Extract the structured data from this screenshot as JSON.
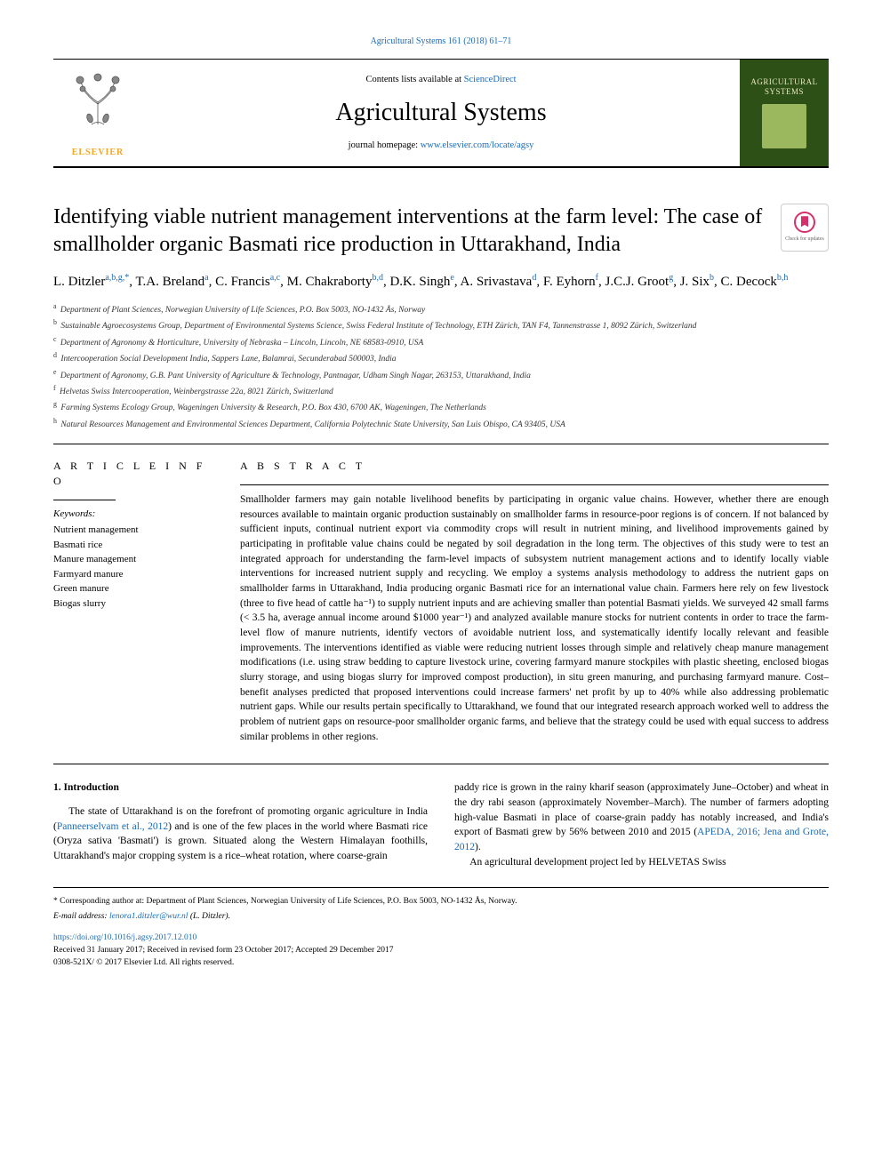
{
  "top_citation": "Agricultural Systems 161 (2018) 61–71",
  "masthead": {
    "contents_prefix": "Contents lists available at ",
    "contents_link": "ScienceDirect",
    "journal_name": "Agricultural Systems",
    "homepage_prefix": "journal homepage: ",
    "homepage_link": "www.elsevier.com/locate/agsy",
    "publisher_logo_text": "ELSEVIER",
    "cover_title": "AGRICULTURAL SYSTEMS"
  },
  "article": {
    "title": "Identifying viable nutrient management interventions at the farm level: The case of smallholder organic Basmati rice production in Uttarakhand, India",
    "check_updates_label": "Check for updates",
    "authors_html": "L. Ditzler<sup>a,b,g,*</sup>, T.A. Breland<sup>a</sup>, C. Francis<sup>a,c</sup>, M. Chakraborty<sup>b,d</sup>, D.K. Singh<sup>e</sup>, A. Srivastava<sup>d</sup>, F. Eyhorn<sup>f</sup>, J.C.J. Groot<sup>g</sup>, J. Six<sup>b</sup>, C. Decock<sup>b,h</sup>",
    "affiliations": [
      {
        "key": "a",
        "text": "Department of Plant Sciences, Norwegian University of Life Sciences, P.O. Box 5003, NO-1432 Ås, Norway"
      },
      {
        "key": "b",
        "text": "Sustainable Agroecosystems Group, Department of Environmental Systems Science, Swiss Federal Institute of Technology, ETH Zürich, TAN F4, Tannenstrasse 1, 8092 Zürich, Switzerland"
      },
      {
        "key": "c",
        "text": "Department of Agronomy & Horticulture, University of Nebraska – Lincoln, Lincoln, NE 68583-0910, USA"
      },
      {
        "key": "d",
        "text": "Intercooperation Social Development India, Sappers Lane, Balamrai, Secunderabad 500003, India"
      },
      {
        "key": "e",
        "text": "Department of Agronomy, G.B. Pant University of Agriculture & Technology, Pantnagar, Udham Singh Nagar, 263153, Uttarakhand, India"
      },
      {
        "key": "f",
        "text": "Helvetas Swiss Intercooperation, Weinbergstrasse 22a, 8021 Zürich, Switzerland"
      },
      {
        "key": "g",
        "text": "Farming Systems Ecology Group, Wageningen University & Research, P.O. Box 430, 6700 AK, Wageningen, The Netherlands"
      },
      {
        "key": "h",
        "text": "Natural Resources Management and Environmental Sciences Department, California Polytechnic State University, San Luis Obispo, CA 93405, USA"
      }
    ]
  },
  "info": {
    "article_info_label": "A R T I C L E  I N F O",
    "abstract_label": "A B S T R A C T",
    "keywords_label": "Keywords:",
    "keywords": [
      "Nutrient management",
      "Basmati rice",
      "Manure management",
      "Farmyard manure",
      "Green manure",
      "Biogas slurry"
    ]
  },
  "abstract_text": "Smallholder farmers may gain notable livelihood benefits by participating in organic value chains. However, whether there are enough resources available to maintain organic production sustainably on smallholder farms in resource-poor regions is of concern. If not balanced by sufficient inputs, continual nutrient export via commodity crops will result in nutrient mining, and livelihood improvements gained by participating in profitable value chains could be negated by soil degradation in the long term. The objectives of this study were to test an integrated approach for understanding the farm-level impacts of subsystem nutrient management actions and to identify locally viable interventions for increased nutrient supply and recycling. We employ a systems analysis methodology to address the nutrient gaps on smallholder farms in Uttarakhand, India producing organic Basmati rice for an international value chain. Farmers here rely on few livestock (three to five head of cattle ha⁻¹) to supply nutrient inputs and are achieving smaller than potential Basmati yields. We surveyed 42 small farms (< 3.5 ha, average annual income around $1000 year⁻¹) and analyzed available manure stocks for nutrient contents in order to trace the farm-level flow of manure nutrients, identify vectors of avoidable nutrient loss, and systematically identify locally relevant and feasible improvements. The interventions identified as viable were reducing nutrient losses through simple and relatively cheap manure management modifications (i.e. using straw bedding to capture livestock urine, covering farmyard manure stockpiles with plastic sheeting, enclosed biogas slurry storage, and using biogas slurry for improved compost production), in situ green manuring, and purchasing farmyard manure. Cost–benefit analyses predicted that proposed interventions could increase farmers' net profit by up to 40% while also addressing problematic nutrient gaps. While our results pertain specifically to Uttarakhand, we found that our integrated research approach worked well to address the problem of nutrient gaps on resource-poor smallholder organic farms, and believe that the strategy could be used with equal success to address similar problems in other regions.",
  "body": {
    "heading": "1. Introduction",
    "p1_pre": "The state of Uttarakhand is on the forefront of promoting organic agriculture in India (",
    "p1_link": "Panneerselvam et al., 2012",
    "p1_post": ") and is one of the few places in the world where Basmati rice (Oryza sativa 'Basmati') is grown. Situated along the Western Himalayan foothills, Uttarakhand's major cropping system is a rice–wheat rotation, where coarse-grain",
    "p2_pre": "paddy rice is grown in the rainy kharif season (approximately June–October) and wheat in the dry rabi season (approximately November–March). The number of farmers adopting high-value Basmati in place of coarse-grain paddy has notably increased, and India's export of Basmati grew by 56% between 2010 and 2015 (",
    "p2_link": "APEDA, 2016; Jena and Grote, 2012",
    "p2_post": ").",
    "p3": "An agricultural development project led by HELVETAS Swiss"
  },
  "footnotes": {
    "corr": "* Corresponding author at: Department of Plant Sciences, Norwegian University of Life Sciences, P.O. Box 5003, NO-1432 Ås, Norway.",
    "email_label": "E-mail address: ",
    "email": "lenora1.ditzler@wur.nl",
    "email_author": " (L. Ditzler).",
    "doi": "https://doi.org/10.1016/j.agsy.2017.12.010",
    "received": "Received 31 January 2017; Received in revised form 23 October 2017; Accepted 29 December 2017",
    "copyright": "0308-521X/ © 2017 Elsevier Ltd. All rights reserved."
  },
  "colors": {
    "link": "#1a6bb8",
    "elsevier_orange": "#f5a623",
    "cover_bg": "#2d5016",
    "cover_accent": "#9bb85e",
    "crossmark_pink": "#d4306b"
  }
}
